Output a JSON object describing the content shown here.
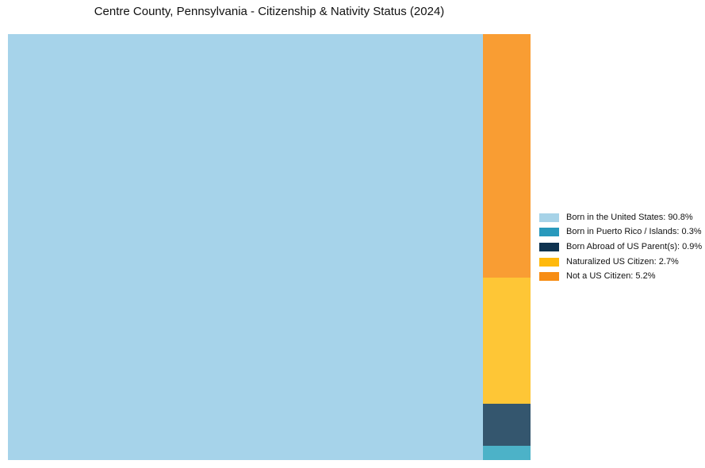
{
  "title": "Centre County, Pennsylvania - Citizenship & Nativity Status (2024)",
  "chart_data": {
    "type": "treemap",
    "title": "Centre County, Pennsylvania - Citizenship & Nativity Status (2024)",
    "unit": "%",
    "legend_position": "right",
    "series": [
      {
        "label": "Born in the United States",
        "value": 90.8,
        "block_color": "#A6D3EA",
        "legend_color": "#A7D3E8"
      },
      {
        "label": "Born in Puerto Rico / Islands",
        "value": 0.3,
        "block_color": "#4CB2C8",
        "legend_color": "#2899BC"
      },
      {
        "label": "Born Abroad of US Parent(s)",
        "value": 0.9,
        "block_color": "#34566E",
        "legend_color": "#0E3350"
      },
      {
        "label": "Naturalized US Citizen",
        "value": 2.7,
        "block_color": "#FEC636",
        "legend_color": "#FFB90C"
      },
      {
        "label": "Not a US Citizen",
        "value": 5.2,
        "block_color": "#F99D33",
        "legend_color": "#F78D14"
      }
    ],
    "layout": {
      "main_block": "Born in the United States",
      "column_order_top_to_bottom": [
        "Not a US Citizen",
        "Naturalized US Citizen",
        "Born Abroad of US Parent(s)",
        "Born in Puerto Rico / Islands"
      ],
      "grid": false,
      "background": "#ffffff"
    }
  }
}
